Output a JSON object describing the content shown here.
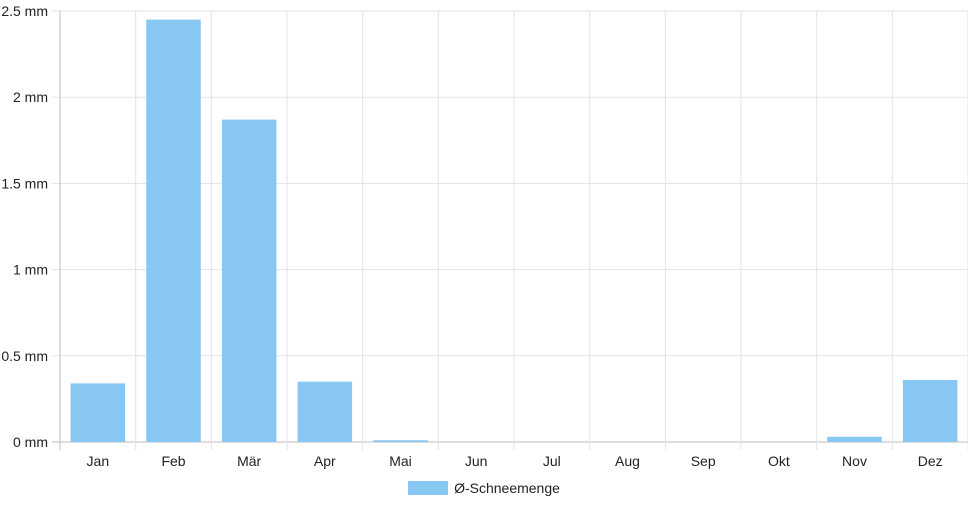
{
  "chart_data": {
    "type": "bar",
    "categories": [
      "Jan",
      "Feb",
      "Mär",
      "Apr",
      "Mai",
      "Jun",
      "Jul",
      "Aug",
      "Sep",
      "Okt",
      "Nov",
      "Dez"
    ],
    "series": [
      {
        "name": "Ø-Schneemenge",
        "values": [
          0.34,
          2.45,
          1.87,
          0.35,
          0.01,
          0,
          0,
          0,
          0,
          0,
          0.03,
          0.36
        ],
        "color": "#87c7f2"
      }
    ],
    "ylim": [
      0,
      2.5
    ],
    "yticks": [
      0,
      0.5,
      1,
      1.5,
      2,
      2.5
    ],
    "ytick_labels": [
      "0 mm",
      "0.5 mm",
      "1 mm",
      "1.5 mm",
      "2 mm",
      "2.5 mm"
    ],
    "grid": true,
    "legend_position": "bottom"
  }
}
